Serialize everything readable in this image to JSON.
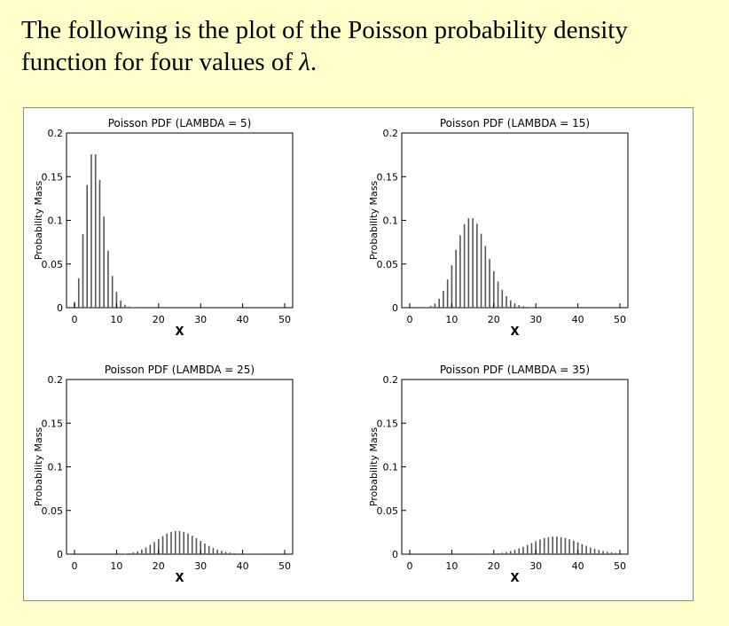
{
  "intro": {
    "line1": "The following is the plot of the Poisson probability density",
    "line2_prefix": "function for four values of ",
    "line2_symbol": "λ",
    "line2_suffix": "."
  },
  "chart_data": [
    {
      "type": "bar",
      "title": "Poisson PDF (LAMBDA = 5)",
      "lambda": 5,
      "xlabel": "X",
      "ylabel": "Probability Mass",
      "xlim": [
        0,
        50
      ],
      "ylim": [
        0,
        0.2
      ],
      "xticks": [
        0,
        10,
        20,
        30,
        40,
        50
      ],
      "yticks": [
        0,
        0.05,
        0.1,
        0.15,
        0.2
      ],
      "ytick_labels": [
        "0",
        "0.05",
        "0.1",
        "0.15",
        "0.2"
      ],
      "x": [
        0,
        1,
        2,
        3,
        4,
        5,
        6,
        7,
        8,
        9,
        10,
        11,
        12,
        13,
        14,
        15,
        16,
        17,
        18,
        19,
        20,
        21,
        22,
        23,
        24,
        25,
        26,
        27,
        28,
        29,
        30,
        31,
        32,
        33,
        34,
        35,
        36,
        37,
        38,
        39,
        40,
        41,
        42,
        43,
        44,
        45,
        46,
        47,
        48,
        49,
        50
      ],
      "values": [
        0.0067,
        0.0337,
        0.0842,
        0.1404,
        0.1755,
        0.1755,
        0.1462,
        0.1044,
        0.0653,
        0.0363,
        0.0181,
        0.0082,
        0.0034,
        0.0013,
        0.0005,
        0.0002,
        0.0,
        0.0,
        0.0,
        0.0,
        0.0,
        0.0,
        0.0,
        0.0,
        0.0,
        0.0,
        0.0,
        0.0,
        0.0,
        0.0,
        0.0,
        0.0,
        0.0,
        0.0,
        0.0,
        0.0,
        0.0,
        0.0,
        0.0,
        0.0,
        0.0,
        0.0,
        0.0,
        0.0,
        0.0,
        0.0,
        0.0,
        0.0,
        0.0,
        0.0,
        0.0
      ]
    },
    {
      "type": "bar",
      "title": "Poisson PDF (LAMBDA = 15)",
      "lambda": 15,
      "xlabel": "X",
      "ylabel": "Probability Mass",
      "xlim": [
        0,
        50
      ],
      "ylim": [
        0,
        0.2
      ],
      "xticks": [
        0,
        10,
        20,
        30,
        40,
        50
      ],
      "yticks": [
        0,
        0.05,
        0.1,
        0.15,
        0.2
      ],
      "ytick_labels": [
        "0",
        "0.05",
        "0.1",
        "0.15",
        "0.2"
      ],
      "x": [
        0,
        1,
        2,
        3,
        4,
        5,
        6,
        7,
        8,
        9,
        10,
        11,
        12,
        13,
        14,
        15,
        16,
        17,
        18,
        19,
        20,
        21,
        22,
        23,
        24,
        25,
        26,
        27,
        28,
        29,
        30,
        31,
        32,
        33,
        34,
        35,
        36,
        37,
        38,
        39,
        40,
        41,
        42,
        43,
        44,
        45,
        46,
        47,
        48,
        49,
        50
      ],
      "values": [
        0.0,
        0.0,
        0.0,
        0.0002,
        0.0006,
        0.0019,
        0.0048,
        0.0104,
        0.0194,
        0.0324,
        0.0486,
        0.0663,
        0.0829,
        0.0956,
        0.1024,
        0.1024,
        0.096,
        0.0847,
        0.0706,
        0.0557,
        0.0418,
        0.0299,
        0.0204,
        0.0133,
        0.0083,
        0.005,
        0.0029,
        0.0016,
        0.0009,
        0.0004,
        0.0002,
        0.0001,
        0.0,
        0.0,
        0.0,
        0.0,
        0.0,
        0.0,
        0.0,
        0.0,
        0.0,
        0.0,
        0.0,
        0.0,
        0.0,
        0.0,
        0.0,
        0.0,
        0.0,
        0.0,
        0.0
      ]
    },
    {
      "type": "bar",
      "title": "Poisson PDF (LAMBDA = 25)",
      "lambda": 25,
      "xlabel": "X",
      "ylabel": "Probability Mass",
      "xlim": [
        0,
        50
      ],
      "ylim": [
        0,
        0.2
      ],
      "xticks": [
        0,
        10,
        20,
        30,
        40,
        50
      ],
      "yticks": [
        0,
        0.05,
        0.1,
        0.15,
        0.2
      ],
      "ytick_labels": [
        "0",
        "0.05",
        "0.1",
        "0.15",
        "0.2"
      ],
      "x": [
        0,
        1,
        2,
        3,
        4,
        5,
        6,
        7,
        8,
        9,
        10,
        11,
        12,
        13,
        14,
        15,
        16,
        17,
        18,
        19,
        20,
        21,
        22,
        23,
        24,
        25,
        26,
        27,
        28,
        29,
        30,
        31,
        32,
        33,
        34,
        35,
        36,
        37,
        38,
        39,
        40,
        41,
        42,
        43,
        44,
        45,
        46,
        47,
        48,
        49,
        50
      ],
      "values": [
        0.0,
        0.0,
        0.0,
        0.0,
        0.0,
        0.0,
        0.0,
        0.0,
        0.0,
        0.0,
        0.0001,
        0.0002,
        0.0005,
        0.001,
        0.0019,
        0.0034,
        0.0053,
        0.0077,
        0.0107,
        0.0139,
        0.0173,
        0.0206,
        0.0235,
        0.0255,
        0.0265,
        0.0265,
        0.0255,
        0.0236,
        0.0211,
        0.0182,
        0.0152,
        0.0122,
        0.0095,
        0.0072,
        0.0053,
        0.0038,
        0.0026,
        0.0018,
        0.0012,
        0.0008,
        0.0005,
        0.0003,
        0.0002,
        0.0001,
        0.0001,
        0.0,
        0.0,
        0.0,
        0.0,
        0.0,
        0.0
      ]
    },
    {
      "type": "bar",
      "title": "Poisson PDF (LAMBDA = 35)",
      "lambda": 35,
      "xlabel": "X",
      "ylabel": "Probability Mass",
      "xlim": [
        0,
        50
      ],
      "ylim": [
        0,
        0.2
      ],
      "xticks": [
        0,
        10,
        20,
        30,
        40,
        50
      ],
      "yticks": [
        0,
        0.05,
        0.1,
        0.15,
        0.2
      ],
      "ytick_labels": [
        "0",
        "0.05",
        "0.1",
        "0.15",
        "0.2"
      ],
      "x": [
        0,
        1,
        2,
        3,
        4,
        5,
        6,
        7,
        8,
        9,
        10,
        11,
        12,
        13,
        14,
        15,
        16,
        17,
        18,
        19,
        20,
        21,
        22,
        23,
        24,
        25,
        26,
        27,
        28,
        29,
        30,
        31,
        32,
        33,
        34,
        35,
        36,
        37,
        38,
        39,
        40,
        41,
        42,
        43,
        44,
        45,
        46,
        47,
        48,
        49,
        50
      ],
      "values": [
        0.0,
        0.0,
        0.0,
        0.0,
        0.0,
        0.0,
        0.0,
        0.0,
        0.0,
        0.0,
        0.0,
        0.0,
        0.0,
        0.0,
        0.0,
        0.0,
        0.0,
        0.0001,
        0.0002,
        0.0004,
        0.0006,
        0.001,
        0.0016,
        0.0024,
        0.0035,
        0.0049,
        0.0066,
        0.0085,
        0.0106,
        0.0128,
        0.0149,
        0.0168,
        0.0184,
        0.0195,
        0.0201,
        0.0201,
        0.0195,
        0.0185,
        0.017,
        0.0153,
        0.0134,
        0.0114,
        0.0095,
        0.0077,
        0.0061,
        0.0048,
        0.0036,
        0.0027,
        0.002,
        0.0014,
        0.001
      ]
    }
  ]
}
